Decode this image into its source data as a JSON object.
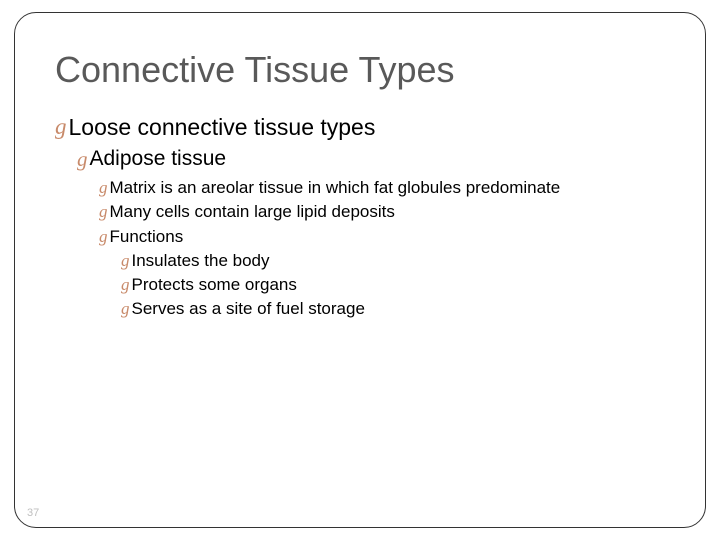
{
  "slide": {
    "title": "Connective Tissue Types",
    "title_color": "#595959",
    "title_fontsize": 36,
    "background_color": "#ffffff",
    "text_color": "#000000",
    "bullet_marker_color": "#c88a6a",
    "border_color": "#333333",
    "border_radius": 22,
    "page_number": "37",
    "page_number_color": "#bfbfbf",
    "bullets": [
      {
        "level": 1,
        "text": "Loose connective tissue types",
        "fontsize": 23
      },
      {
        "level": 2,
        "text": "Adipose tissue",
        "fontsize": 21
      },
      {
        "level": 3,
        "text": "Matrix is an areolar tissue in which fat globules predominate",
        "fontsize": 17
      },
      {
        "level": 3,
        "text": "Many cells contain large lipid deposits",
        "fontsize": 17
      },
      {
        "level": 3,
        "text": "Functions",
        "fontsize": 17
      },
      {
        "level": 4,
        "text": "Insulates the body",
        "fontsize": 17
      },
      {
        "level": 4,
        "text": "Protects some organs",
        "fontsize": 17
      },
      {
        "level": 4,
        "text": "Serves as a site of fuel storage",
        "fontsize": 17
      }
    ]
  }
}
